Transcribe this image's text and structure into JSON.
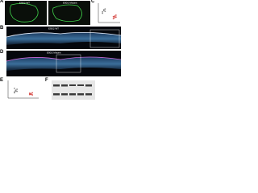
{
  "panel_a": {
    "letter": "A",
    "images": [
      "E9D2 WT",
      "E9D2 Mutant"
    ]
  },
  "panel_b": {
    "letter": "B",
    "label": "E9D2 WT"
  },
  "panel_c": {
    "letter": "C",
    "ylim": [
      0,
      1
    ],
    "groups": [
      {
        "color": "#8a8a8a",
        "values": [
          0.55,
          0.62,
          0.7,
          0.48,
          0.66,
          0.58
        ]
      },
      {
        "color": "#d9534f",
        "values": [
          0.3,
          0.25,
          0.38,
          0.2,
          0.33,
          0.28
        ]
      }
    ]
  },
  "panel_d": {
    "letter": "D",
    "label": "E9D2 Mutant"
  },
  "panel_e": {
    "letter": "E",
    "ylim": [
      0,
      1
    ],
    "groups": [
      {
        "color": "#8a8a8a",
        "values": [
          0.35,
          0.42,
          0.5,
          0.3,
          0.45,
          0.38,
          0.55,
          0.4
        ]
      },
      {
        "color": "#d9534f",
        "values": [
          0.2,
          0.25,
          0.18,
          0.28,
          0.22,
          0.3,
          0.24,
          0.21
        ]
      }
    ]
  },
  "panel_f": {
    "letter": "F"
  }
}
